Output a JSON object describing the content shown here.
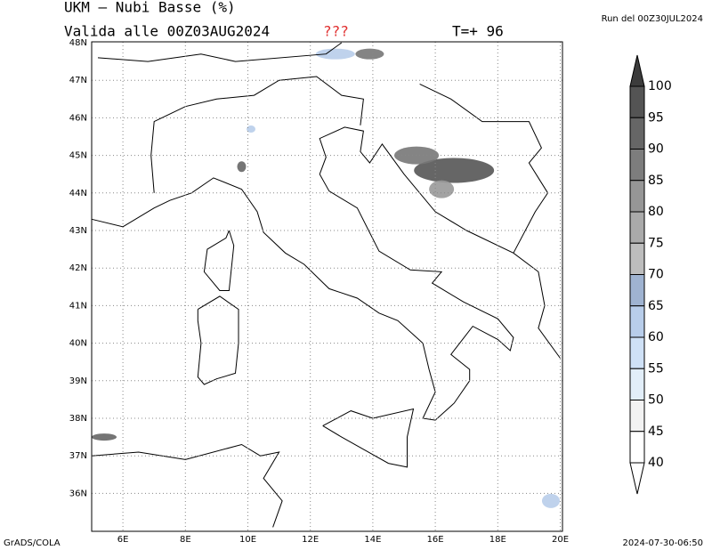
{
  "header": {
    "title": "UKM – Nubi Basse (%)",
    "valid": "Valida alle 00Z03AUG2024",
    "flag": "???",
    "lead": "T=+ 96",
    "run": "Run del 00Z30JUL2024"
  },
  "map": {
    "lat_labels": [
      "48N",
      "47N",
      "46N",
      "45N",
      "44N",
      "43N",
      "42N",
      "41N",
      "40N",
      "39N",
      "38N",
      "37N",
      "36N"
    ],
    "lon_labels": [
      "6E",
      "8E",
      "10E",
      "12E",
      "14E",
      "16E",
      "18E",
      "20E"
    ]
  },
  "colorbar": {
    "labels": [
      "100",
      "95",
      "90",
      "85",
      "80",
      "75",
      "70",
      "65",
      "60",
      "55",
      "50",
      "45",
      "40"
    ],
    "colors": [
      "#3c3c3c",
      "#545454",
      "#666666",
      "#7d7d7d",
      "#969696",
      "#aaaaaa",
      "#bdbdbd",
      "#9fb3d1",
      "#b8cdea",
      "#cfe1f6",
      "#e2eef9",
      "#f2f2f2",
      "#ffffff",
      "#ffffff"
    ]
  },
  "footer": {
    "left": "GrADS/COLA",
    "right": "2024-07-30-06:50"
  }
}
